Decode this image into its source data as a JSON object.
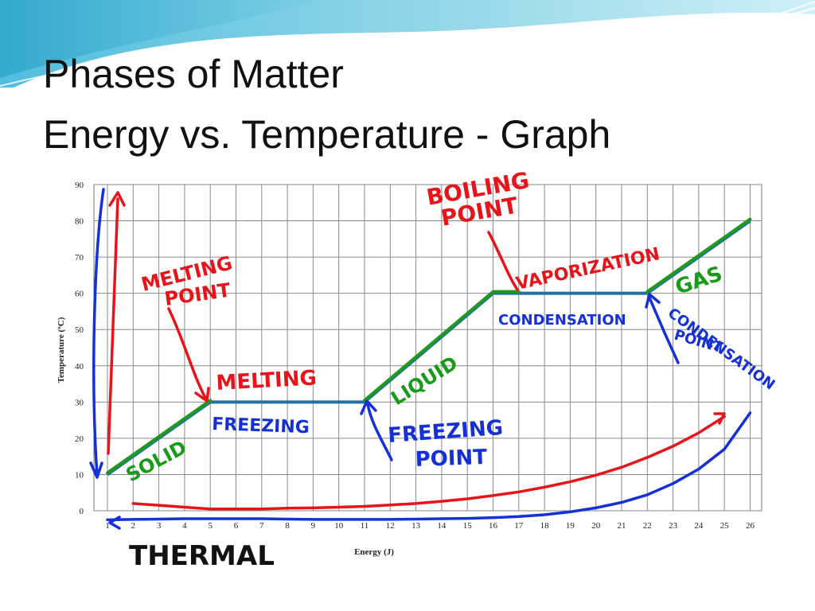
{
  "slide": {
    "title_line1": "Phases of Matter",
    "title_line2": "Energy vs. Temperature - Graph"
  },
  "chart_data": {
    "type": "line",
    "xlabel": "Energy (J)",
    "ylabel": "Temperature (ºC)",
    "xlim": [
      1,
      26
    ],
    "ylim": [
      0,
      90
    ],
    "x_ticks": [
      1,
      2,
      3,
      4,
      5,
      6,
      7,
      8,
      9,
      10,
      11,
      12,
      13,
      14,
      15,
      16,
      17,
      18,
      19,
      20,
      21,
      22,
      23,
      24,
      25,
      26
    ],
    "y_ticks": [
      0,
      10,
      20,
      30,
      40,
      50,
      60,
      70,
      80,
      90
    ],
    "grid": true,
    "series": [
      {
        "x": [
          1,
          2,
          3,
          4,
          5,
          6,
          7,
          8,
          9,
          10,
          11,
          12,
          13,
          14,
          15,
          16,
          17,
          18,
          19,
          20,
          21,
          22,
          23,
          24,
          25,
          26
        ],
        "y": [
          10,
          15,
          20,
          25,
          30,
          30,
          30,
          30,
          30,
          30,
          30,
          36,
          42,
          48,
          54,
          60,
          60,
          60,
          60,
          60,
          60,
          60,
          65,
          70,
          75,
          80
        ]
      }
    ],
    "red_curve": {
      "x": [
        2,
        3,
        4,
        5,
        6,
        7,
        8,
        9,
        10,
        11,
        12,
        13,
        14,
        15,
        16,
        17,
        18,
        19,
        20,
        21,
        22,
        23,
        24,
        25
      ],
      "y": [
        2,
        1.5,
        1,
        0.5,
        0.5,
        0.5,
        0.7,
        0.8,
        1,
        1.2,
        1.6,
        2,
        2.6,
        3.3,
        4.2,
        5.2,
        6.5,
        8,
        9.8,
        12,
        14.7,
        17.8,
        21.5,
        26
      ]
    },
    "blue_curve": {
      "x": [
        1,
        2,
        3,
        4,
        5,
        6,
        7,
        8,
        9,
        10,
        11,
        12,
        13,
        14,
        15,
        16,
        17,
        18,
        19,
        20,
        21,
        22,
        23,
        24,
        25,
        26
      ],
      "y": [
        -2.5,
        -2.4,
        -2.3,
        -2.2,
        -2.2,
        -2.2,
        -2.2,
        -2.3,
        -2.4,
        -2.4,
        -2.4,
        -2.4,
        -2.3,
        -2.2,
        -2.1,
        -1.9,
        -1.6,
        -1.1,
        -0.3,
        0.8,
        2.3,
        4.4,
        7.5,
        11.5,
        17,
        27
      ]
    },
    "annotations": {
      "melting_point": [
        "MELTING",
        "POINT"
      ],
      "melting": "MELTING",
      "freezing": "FREEZING",
      "solid": "SOLID",
      "liquid": "LIQUID",
      "freezing_point": [
        "FREEZING",
        "POINT"
      ],
      "boiling_point": [
        "BOILING",
        "POINT"
      ],
      "vaporization": "VAPORIZATION",
      "condensation": "CONDENSATION",
      "gas": "GAS",
      "condensation_point": [
        "CONDENSATION",
        "POINT"
      ],
      "thermal": "THERMAL"
    },
    "colors": {
      "phase_line_blue": "#1f6fa8",
      "phase_line_green": "#1f9a1f",
      "ink_red": "#e8141b",
      "ink_blue": "#1430d6",
      "ink_green": "#1a9a1a",
      "ink_black": "#111111"
    }
  }
}
